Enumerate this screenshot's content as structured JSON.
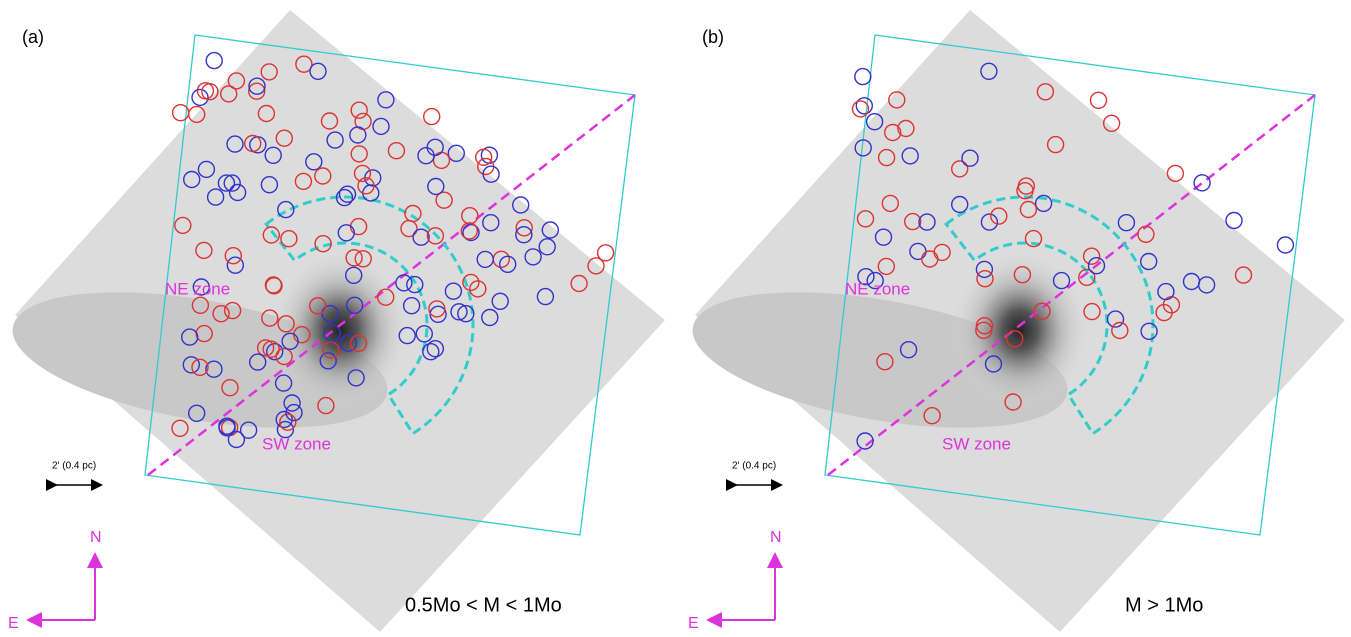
{
  "panels": [
    {
      "label": "(a)",
      "zones": [
        "NE zone",
        "SW zone"
      ],
      "scale": "2' (0.4 pc)",
      "compass": {
        "north": "N",
        "east": "E"
      },
      "mass_range": "0.5Mo < M < 1Mo"
    },
    {
      "label": "(b)",
      "zones": [
        "NE zone",
        "SW zone"
      ],
      "scale": "2' (0.4 pc)",
      "compass": {
        "north": "N",
        "east": "E"
      },
      "mass_range": "M > 1Mo"
    }
  ]
}
